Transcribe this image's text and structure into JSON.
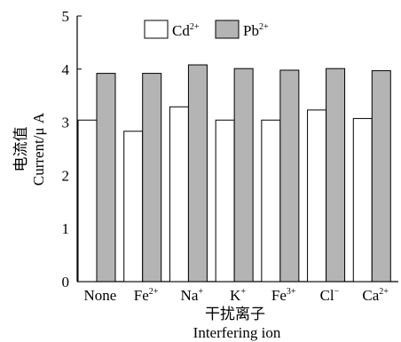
{
  "chart_data": {
    "type": "bar",
    "categories": [
      "None",
      "Fe2+",
      "Na+",
      "K+",
      "Fe3+",
      "Cl-",
      "Ca2+"
    ],
    "category_labels": [
      {
        "base": "None",
        "sup": ""
      },
      {
        "base": "Fe",
        "sup": "2+"
      },
      {
        "base": "Na",
        "sup": "+"
      },
      {
        "base": "K",
        "sup": "+"
      },
      {
        "base": "Fe",
        "sup": "3+"
      },
      {
        "base": "Cl",
        "sup": "−"
      },
      {
        "base": "Ca",
        "sup": "2+"
      }
    ],
    "series": [
      {
        "name": "Cd2+",
        "label_base": "Cd",
        "label_sup": "2+",
        "color": "#ffffff",
        "values": [
          3.04,
          2.83,
          3.29,
          3.04,
          3.04,
          3.23,
          3.07
        ]
      },
      {
        "name": "Pb2+",
        "label_base": "Pb",
        "label_sup": "2+",
        "color": "#b4b4b4",
        "values": [
          3.92,
          3.92,
          4.08,
          4.01,
          3.98,
          4.01,
          3.97
        ]
      }
    ],
    "ylim": [
      0,
      5
    ],
    "yticks": [
      0,
      1,
      2,
      3,
      4,
      5
    ],
    "ylabel_cn": "电流值",
    "ylabel_en": "Current/μ A",
    "xlabel_cn": "干扰离子",
    "xlabel_en": "Interfering ion",
    "legend_position": "top-center",
    "grid": false
  }
}
